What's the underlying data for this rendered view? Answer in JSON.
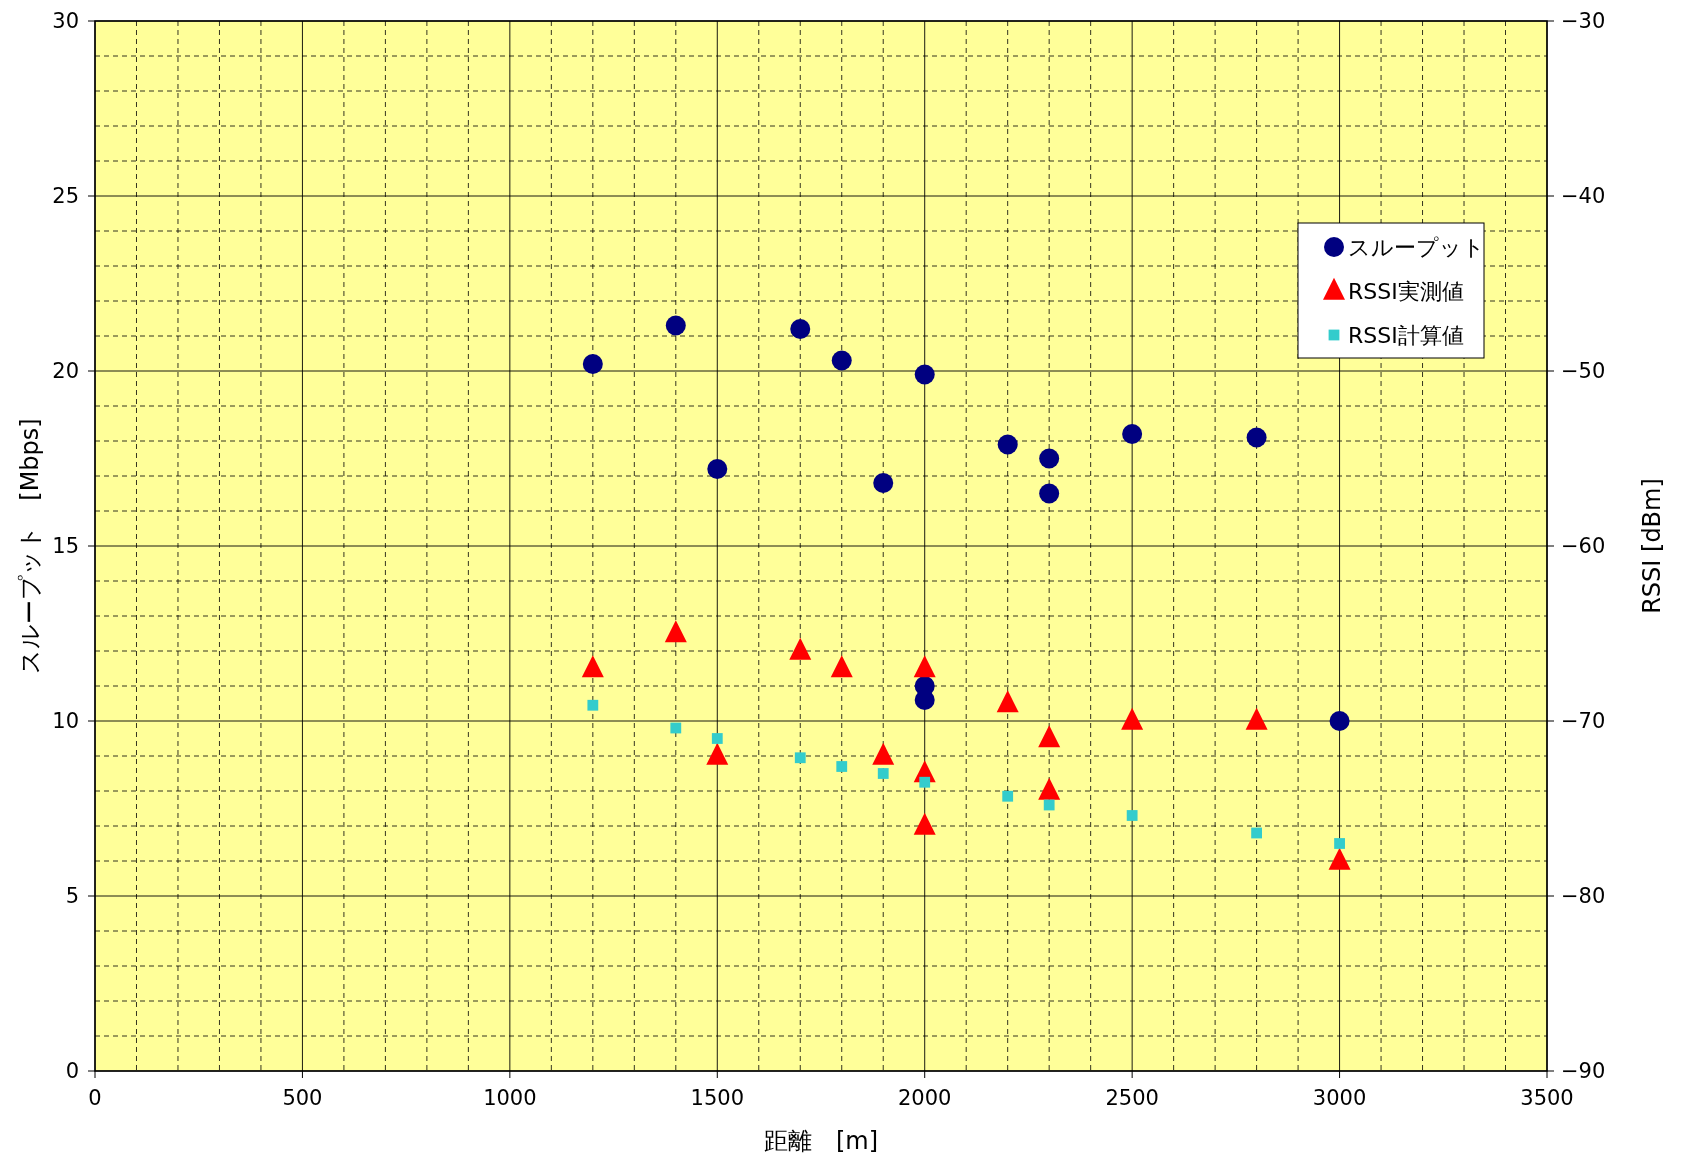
{
  "chart_data": {
    "type": "scatter",
    "xlabel": "距離　[m]",
    "ylabel": "スループット　[Mbps]",
    "y2label": "RSSI [dBm]",
    "xlim": [
      0,
      3500
    ],
    "xticks": [
      0,
      500,
      1000,
      1500,
      2000,
      2500,
      3000,
      3500
    ],
    "ylim": [
      0,
      30
    ],
    "yticks": [
      0,
      5,
      10,
      15,
      20,
      25,
      30
    ],
    "y2lim": [
      -90,
      -30
    ],
    "y2ticks": [
      -90,
      -80,
      -70,
      -60,
      -50,
      -40,
      -30
    ],
    "grid": true,
    "legend": "top right",
    "series": [
      {
        "name": "スループット",
        "color": "#000080",
        "marker": "circle",
        "x": [
          1200,
          1400,
          1500,
          1700,
          1800,
          1900,
          2000,
          2000,
          2000,
          2200,
          2300,
          2300,
          2500,
          2800,
          3000
        ],
        "values": [
          20.2,
          21.3,
          17.2,
          21.2,
          20.3,
          16.8,
          19.9,
          11.0,
          10.6,
          17.9,
          17.5,
          16.5,
          18.2,
          18.1,
          10.0
        ]
      },
      {
        "name": "RSSI実測値",
        "color": "#ff0000",
        "marker": "triangle",
        "axis": "y2",
        "x": [
          1200,
          1400,
          1500,
          1700,
          1800,
          1900,
          2000,
          2000,
          2000,
          2200,
          2300,
          2300,
          2500,
          2800,
          3000
        ],
        "values": [
          -67,
          -65,
          -72,
          -66,
          -67,
          -72,
          -67,
          -73,
          -76,
          -69,
          -71,
          -74,
          -70,
          -70,
          -78
        ]
      },
      {
        "name": "RSSI計算値",
        "color": "#33cccc",
        "marker": "square",
        "axis": "y2",
        "x": [
          1200,
          1400,
          1500,
          1700,
          1800,
          1900,
          2000,
          2200,
          2300,
          2500,
          2800,
          3000
        ],
        "values": [
          -69.1,
          -70.4,
          -71.0,
          -72.1,
          -72.6,
          -73.0,
          -73.5,
          -74.3,
          -74.8,
          -75.4,
          -76.4,
          -77.0
        ]
      }
    ]
  }
}
